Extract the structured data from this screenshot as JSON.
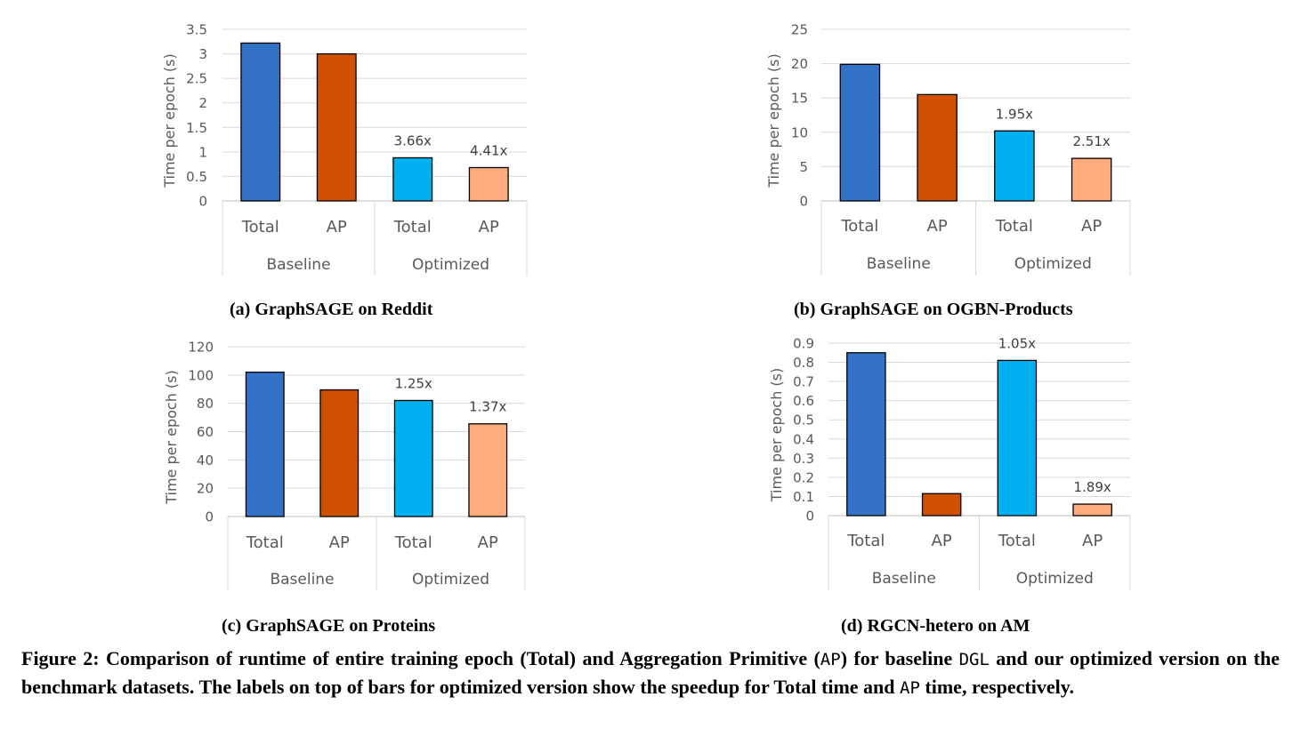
{
  "colors": {
    "baseline_total": "#3472C8",
    "baseline_ap": "#CE5000",
    "optimized_total": "#00B0F0",
    "optimized_ap": "#FFAC7C",
    "grid": "#d9d9d9",
    "tick_text": "#595959"
  },
  "chart_data": [
    {
      "type": "bar",
      "caption": "(a) GraphSAGE on Reddit",
      "ylabel": "Time per epoch (s)",
      "ylim": [
        0,
        3.5
      ],
      "yticks": [
        "0",
        "0.5",
        "1",
        "1.5",
        "2",
        "2.5",
        "3",
        "3.5"
      ],
      "groups": [
        "Baseline",
        "Optimized"
      ],
      "categories": [
        "Total",
        "AP",
        "Total",
        "AP"
      ],
      "values": [
        3.22,
        3.0,
        0.88,
        0.68
      ],
      "bar_labels": [
        "",
        "",
        "3.66x",
        "4.41x"
      ],
      "grid": true
    },
    {
      "type": "bar",
      "caption": "(b) GraphSAGE on OGBN-Products",
      "ylabel": "Time per epoch (s)",
      "ylim": [
        0,
        25
      ],
      "yticks": [
        "0",
        "5",
        "10",
        "15",
        "20",
        "25"
      ],
      "groups": [
        "Baseline",
        "Optimized"
      ],
      "categories": [
        "Total",
        "AP",
        "Total",
        "AP"
      ],
      "values": [
        19.9,
        15.5,
        10.2,
        6.2
      ],
      "bar_labels": [
        "",
        "",
        "1.95x",
        "2.51x"
      ],
      "grid": true
    },
    {
      "type": "bar",
      "caption": "(c) GraphSAGE on Proteins",
      "ylabel": "Time per epoch (s)",
      "ylim": [
        0,
        120
      ],
      "yticks": [
        "0",
        "20",
        "40",
        "60",
        "80",
        "100",
        "120"
      ],
      "groups": [
        "Baseline",
        "Optimized"
      ],
      "categories": [
        "Total",
        "AP",
        "Total",
        "AP"
      ],
      "values": [
        102,
        89.5,
        82,
        65.5
      ],
      "bar_labels": [
        "",
        "",
        "1.25x",
        "1.37x"
      ],
      "grid": true
    },
    {
      "type": "bar",
      "caption": "(d) RGCN-hetero on AM",
      "ylabel": "Time per epoch (s)",
      "ylim": [
        0,
        0.9
      ],
      "yticks": [
        "0",
        "0.1",
        "0.2",
        "0.3",
        "0.4",
        "0.5",
        "0.6",
        "0.7",
        "0.8",
        "0.9"
      ],
      "groups": [
        "Baseline",
        "Optimized"
      ],
      "categories": [
        "Total",
        "AP",
        "Total",
        "AP"
      ],
      "values": [
        0.85,
        0.115,
        0.81,
        0.06
      ],
      "bar_labels": [
        "",
        "",
        "1.05x",
        "1.89x"
      ],
      "grid": true
    }
  ],
  "figure_caption": {
    "p1": "Figure 2: Comparison of runtime of entire training epoch (Total) and Aggregation Primitive (",
    "m1": "AP",
    "p2": ") for baseline ",
    "m2": "DGL",
    "p3": " and our optimized version on the benchmark datasets. The labels on top of bars for optimized version show the speedup for Total time and ",
    "m3": "AP",
    "p4": " time, respectively."
  }
}
